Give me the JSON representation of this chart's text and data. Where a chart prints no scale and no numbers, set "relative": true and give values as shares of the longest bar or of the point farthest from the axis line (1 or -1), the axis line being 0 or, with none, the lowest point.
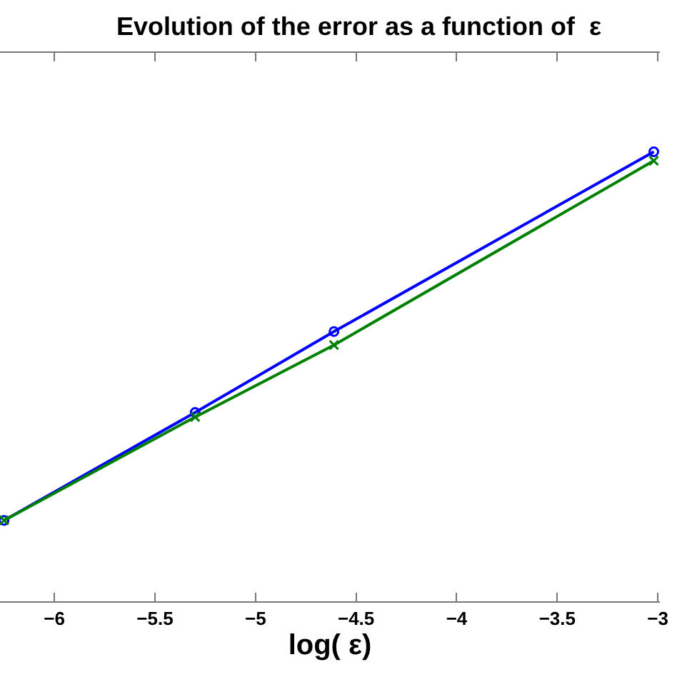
{
  "chart_data": {
    "type": "line",
    "title": "Evolution of the error as a function of  ε",
    "xlabel": "log( ε)",
    "relative": true,
    "xlim": [
      -6.27,
      -2.99
    ],
    "xticks": [
      -6,
      -5.5,
      -5,
      -4.5,
      -4,
      -3.5,
      -3
    ],
    "series": [
      {
        "color": "#0000ff",
        "marker": "circle",
        "x": [
          -6.25,
          -5.3,
          -4.61,
          -3.02
        ],
        "values": [
          0.18,
          0.42,
          0.6,
          1
        ]
      },
      {
        "color": "#008000",
        "marker": "cross",
        "x": [
          -6.25,
          -5.3,
          -4.61,
          -3.02
        ],
        "values": [
          0.18,
          0.41,
          0.57,
          0.98
        ]
      }
    ],
    "grid": false,
    "line_style": "solid"
  }
}
